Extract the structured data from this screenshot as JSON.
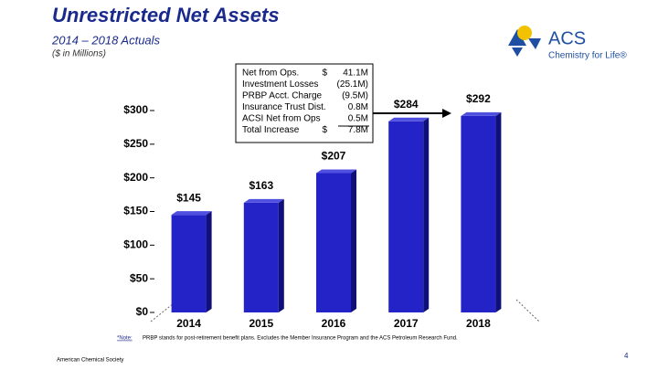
{
  "title": "Unrestricted Net Assets",
  "subtitle": "2014 – 2018 Actuals",
  "units": "($ in Millions)",
  "logo": {
    "name": "ACS",
    "tagline": "Chemistry for Life®"
  },
  "chart_data": {
    "type": "bar",
    "categories": [
      "2014",
      "2015",
      "2016",
      "2017",
      "2018"
    ],
    "values": [
      145,
      163,
      207,
      284,
      292
    ],
    "value_labels": [
      "$145",
      "$163",
      "$207",
      "$284",
      "$292"
    ],
    "color": "#2323c8",
    "ylim": [
      0,
      300
    ],
    "yticks": [
      {
        "value": 0,
        "label": "$0"
      },
      {
        "value": 50,
        "label": "$50"
      },
      {
        "value": 100,
        "label": "$100"
      },
      {
        "value": 150,
        "label": "$150"
      },
      {
        "value": 200,
        "label": "$200"
      },
      {
        "value": 250,
        "label": "$250"
      },
      {
        "value": 300,
        "label": "$300"
      }
    ]
  },
  "annotation": {
    "rows": [
      [
        "Net from Ops.",
        "$",
        "41.1M"
      ],
      [
        "Investment Losses",
        "",
        "(25.1M)"
      ],
      [
        "PRBP Acct. Charge",
        "",
        "(9.5M)"
      ],
      [
        "Insurance Trust Dist.",
        "",
        "0.8M"
      ],
      [
        "ACSI Net from Ops",
        "",
        "0.5M"
      ],
      [
        "Total Increase",
        "$",
        "7.8M"
      ]
    ]
  },
  "note": {
    "label": "*Note:",
    "text": "PRBP stands for post-retirement benefit plans. Excludes the Member Insurance Program and the ACS Petroleum Research Fund."
  },
  "footer": "American Chemical Society",
  "page_number": "4"
}
